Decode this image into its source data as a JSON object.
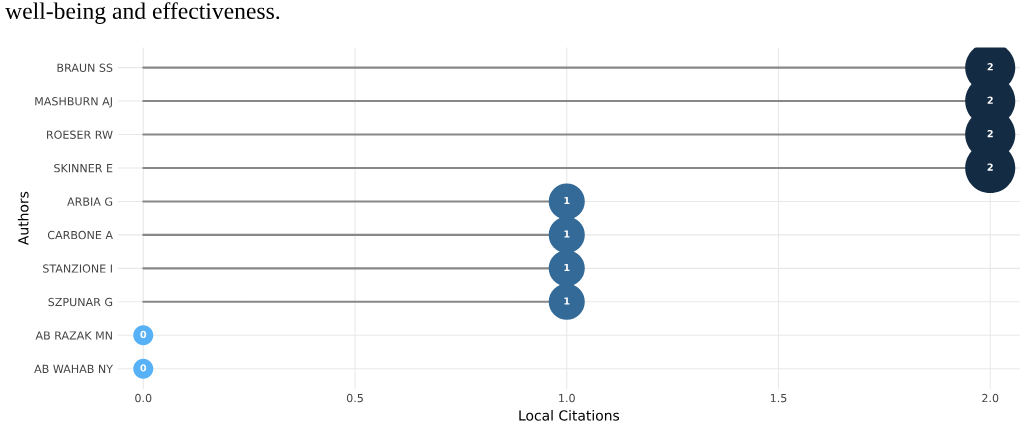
{
  "chart_data": {
    "type": "lollipop",
    "orientation": "horizontal",
    "ylabel": "Authors",
    "xlabel": "Local Citations",
    "annotations": [
      "well-being and effectiveness."
    ],
    "categories": [
      "BRAUN SS",
      "MASHBURN AJ",
      "ROESER RW",
      "SKINNER E",
      "ARBIA G",
      "CARBONE A",
      "STANZIONE I",
      "SZPUNAR G",
      "AB RAZAK MN",
      "AB WAHAB NY"
    ],
    "values": [
      2,
      2,
      2,
      2,
      1,
      1,
      1,
      1,
      0,
      0
    ],
    "colors": [
      "#132b43",
      "#132b43",
      "#132b43",
      "#132b43",
      "#336a98",
      "#336a98",
      "#336a98",
      "#336a98",
      "#56b1f7",
      "#56b1f7"
    ],
    "sizes": [
      1,
      1,
      1,
      1,
      0.52,
      0.52,
      0.52,
      0.52,
      0.16,
      0.16
    ],
    "data_labels": true,
    "xlim": [
      -0.06,
      2.07
    ],
    "xticks": [
      {
        "value": 0,
        "label": "0.0"
      },
      {
        "value": 0.5,
        "label": "0.5"
      },
      {
        "value": 1,
        "label": "1.0"
      },
      {
        "value": 1.5,
        "label": "1.5"
      },
      {
        "value": 2,
        "label": "2.0"
      }
    ],
    "grid": true
  }
}
